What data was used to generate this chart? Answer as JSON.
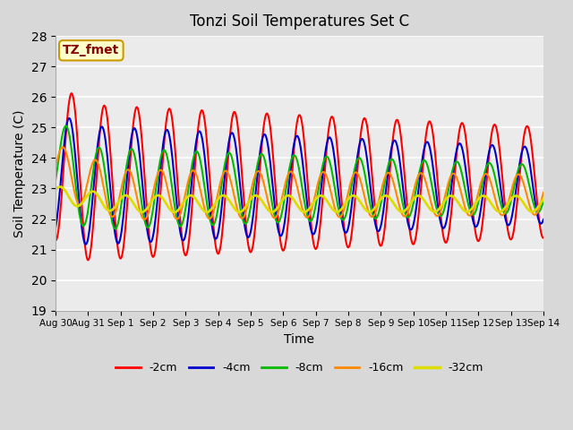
{
  "title": "Tonzi Soil Temperatures Set C",
  "xlabel": "Time",
  "ylabel": "Soil Temperature (C)",
  "ylim": [
    19.0,
    28.0
  ],
  "yticks": [
    19.0,
    20.0,
    21.0,
    22.0,
    23.0,
    24.0,
    25.0,
    26.0,
    27.0,
    28.0
  ],
  "xtick_labels": [
    "Aug 30",
    "Aug 31",
    "Sep 1",
    "Sep 2",
    "Sep 3",
    "Sep 4",
    "Sep 5",
    "Sep 6",
    "Sep 7",
    "Sep 8",
    "Sep 9",
    "Sep 10",
    "Sep 11",
    "Sep 12",
    "Sep 13",
    "Sep 14"
  ],
  "annotation_text": "TZ_fmet",
  "annotation_bbox_facecolor": "#ffffcc",
  "annotation_bbox_edgecolor": "#cc9900",
  "annotation_text_color": "#880000",
  "legend_labels": [
    "-2cm",
    "-4cm",
    "-8cm",
    "-16cm",
    "-32cm"
  ],
  "line_colors": [
    "#ff0000",
    "#0000cc",
    "#00bb00",
    "#ff8800",
    "#dddd00"
  ],
  "line_widths": [
    1.5,
    1.5,
    1.5,
    1.5,
    2.0
  ],
  "fig_bg_color": "#d8d8d8",
  "plot_bg_color": "#ebebeb",
  "n_points": 672,
  "days": 15,
  "mean_base": 23.0,
  "amplitude_2cm": 2.6,
  "amplitude_4cm": 2.0,
  "amplitude_8cm": 1.4,
  "amplitude_16cm": 0.85,
  "amplitude_32cm": 0.28,
  "phase_2cm": -1.5707963,
  "phase_4cm": -1.1,
  "phase_8cm": -0.55,
  "phase_16cm": 0.1,
  "phase_32cm": 0.6
}
